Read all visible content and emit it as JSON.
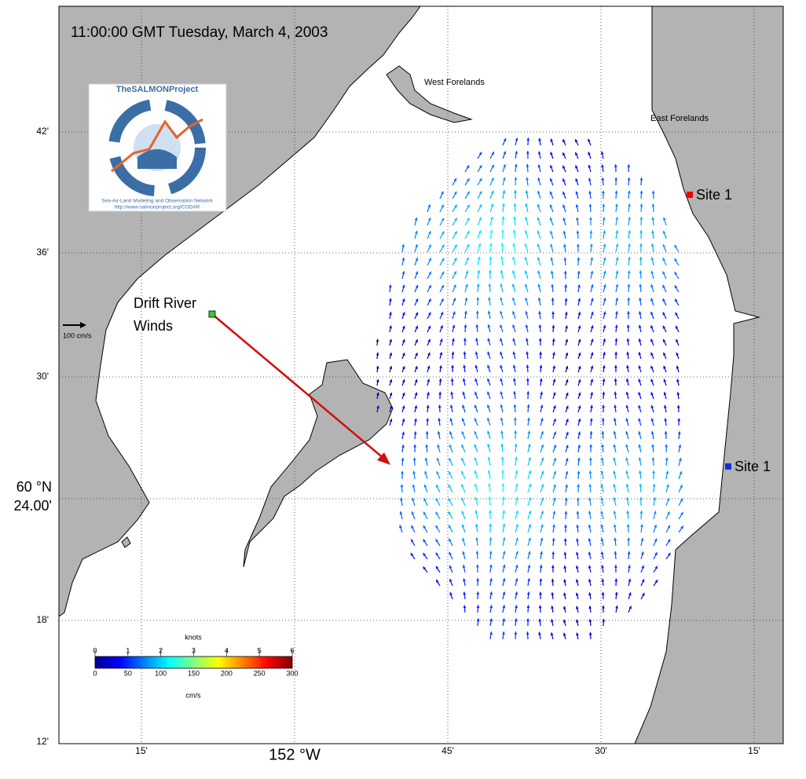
{
  "timestamp": "11:00:00 GMT Tuesday, March 4, 2003",
  "logo": {
    "title": "TheSALMONProject",
    "subtitle": "Sea-Air-Land Modeling and Observation Network",
    "url": "http://www.salmonproject.org/CODAR"
  },
  "places": {
    "west": "West Forelands",
    "east": "East Forelands",
    "drift": "Drift River Winds",
    "site_north": "Site 1",
    "site_south": "Site 1"
  },
  "scale_label": "100 cm/s",
  "y_axis": [
    "42'",
    "36'",
    "30'",
    "60 °N 24.00'",
    "18'",
    "12'"
  ],
  "x_axis": [
    "15'",
    "152 °W",
    "45'",
    "30'",
    "15'"
  ],
  "colorbar": {
    "top_label": "knots",
    "bottom_label": "cm/s",
    "knots_ticks": [
      0,
      1,
      2,
      3,
      4,
      5,
      6
    ],
    "cms_ticks": [
      0,
      50,
      100,
      150,
      200,
      250,
      300
    ]
  }
}
